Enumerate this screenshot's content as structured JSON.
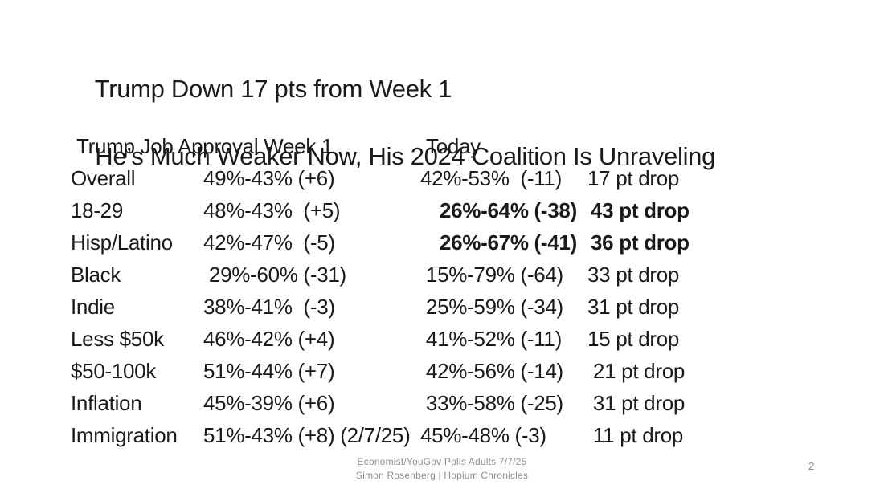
{
  "slide": {
    "title": {
      "line1": "Trump Down 17 pts from Week 1",
      "line2": "He’s Much Weaker Now, His 2024 Coalition Is Unraveling"
    },
    "table": {
      "header": {
        "week1": "Trump Job Approval Week 1",
        "today": "Today"
      },
      "rows": [
        {
          "label": "Overall",
          "week1": "49%-43% (+6)",
          "today": "42%-53%  (-11)",
          "drop": "17 pt drop",
          "bold": false
        },
        {
          "label": "18-29",
          "week1": "48%-43%  (+5)",
          "today": "26%-64% (-38)",
          "drop": "43 pt drop",
          "bold": true
        },
        {
          "label": "Hisp/Latino",
          "week1": "42%-47%  (-5)",
          "today": "26%-67% (-41)",
          "drop": "36 pt drop",
          "bold": true
        },
        {
          "label": "Black",
          "week1": " 29%-60% (-31)",
          "today": " 15%-79% (-64)",
          "drop": "33 pt drop",
          "bold": false
        },
        {
          "label": "Indie",
          "week1": "38%-41%  (-3)",
          "today": " 25%-59% (-34)",
          "drop": "31 pt drop",
          "bold": false
        },
        {
          "label": "Less $50k",
          "week1": "46%-42% (+4)",
          "today": " 41%-52% (-11)",
          "drop": "15 pt drop",
          "bold": false
        },
        {
          "label": "$50-100k",
          "week1": "51%-44% (+7)",
          "today": " 42%-56% (-14)",
          "drop": " 21 pt drop",
          "bold": false
        },
        {
          "label": "Inflation",
          "week1": "45%-39% (+6)",
          "today": " 33%-58% (-25)",
          "drop": " 31 pt drop",
          "bold": false
        },
        {
          "label": "Immigration",
          "week1": "51%-43% (+8) (2/7/25)",
          "today": "45%-48% (-3)",
          "drop": " 11 pt drop",
          "bold": false
        }
      ]
    },
    "footer": {
      "line1": "Economist/YouGov Polls Adults 7/7/25",
      "line2": "Simon Rosenberg | Hopium Chronicles"
    },
    "page_number": "2",
    "colors": {
      "text": "#1a1a1a",
      "muted_text": "#8e8e8e",
      "background": "#ffffff"
    }
  }
}
